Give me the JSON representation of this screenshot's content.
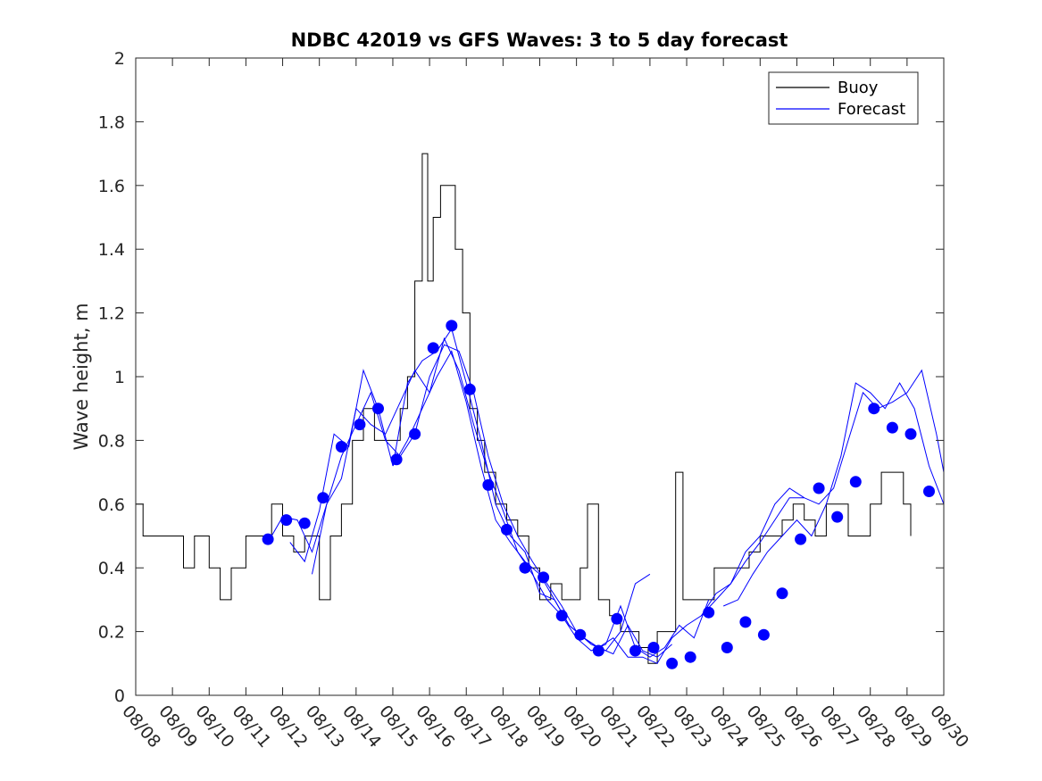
{
  "chart_data": {
    "type": "line",
    "title": "NDBC 42019 vs GFS Waves: 3 to 5 day forecast",
    "xlabel": "",
    "ylabel": "Wave height, m",
    "x_range_days": [
      0,
      22
    ],
    "ylim": [
      0,
      2
    ],
    "y_ticks": [
      0,
      0.2,
      0.4,
      0.6,
      0.8,
      1,
      1.2,
      1.4,
      1.6,
      1.8,
      2
    ],
    "y_tick_labels": [
      "0",
      "0.2",
      "0.4",
      "0.6",
      "0.8",
      "1",
      "1.2",
      "1.4",
      "1.6",
      "1.8",
      "2"
    ],
    "x_tick_labels": [
      "08/08",
      "08/09",
      "08/10",
      "08/11",
      "08/12",
      "08/13",
      "08/14",
      "08/15",
      "08/16",
      "08/17",
      "08/18",
      "08/19",
      "08/20",
      "08/21",
      "08/22",
      "08/23",
      "08/24",
      "08/25",
      "08/26",
      "08/27",
      "08/28",
      "08/29",
      "08/30"
    ],
    "grid": false,
    "legend": {
      "position": "top-right",
      "entries": [
        {
          "label": "Buoy",
          "color": "#000000"
        },
        {
          "label": "Forecast",
          "color": "#0000ff"
        }
      ]
    },
    "buoy": {
      "name": "Buoy",
      "color": "#000000",
      "x": [
        0.0,
        0.2,
        0.5,
        1.0,
        1.3,
        1.6,
        2.0,
        2.3,
        2.6,
        3.0,
        3.3,
        3.7,
        4.0,
        4.3,
        4.6,
        5.0,
        5.3,
        5.6,
        5.9,
        6.2,
        6.5,
        6.8,
        7.0,
        7.2,
        7.4,
        7.6,
        7.8,
        7.95,
        8.1,
        8.3,
        8.5,
        8.7,
        8.9,
        9.1,
        9.3,
        9.5,
        9.8,
        10.1,
        10.4,
        10.7,
        11.0,
        11.3,
        11.6,
        11.9,
        12.1,
        12.3,
        12.6,
        12.9,
        13.2,
        13.5,
        13.7,
        13.95,
        14.2,
        14.5,
        14.7,
        14.9,
        15.1,
        15.3,
        15.5,
        15.75,
        15.9,
        16.1,
        16.4,
        16.7,
        17.0,
        17.3,
        17.6,
        17.9,
        18.2,
        18.5,
        18.8,
        19.1,
        19.4,
        19.7,
        20.0,
        20.3,
        20.6,
        20.9,
        21.1
      ],
      "y": [
        0.6,
        0.5,
        0.5,
        0.5,
        0.4,
        0.5,
        0.4,
        0.3,
        0.4,
        0.5,
        0.5,
        0.6,
        0.5,
        0.45,
        0.5,
        0.3,
        0.5,
        0.6,
        0.8,
        0.9,
        0.8,
        0.8,
        0.8,
        0.9,
        1.0,
        1.3,
        1.7,
        1.3,
        1.5,
        1.6,
        1.6,
        1.4,
        1.2,
        0.9,
        0.8,
        0.7,
        0.6,
        0.55,
        0.5,
        0.4,
        0.3,
        0.35,
        0.3,
        0.3,
        0.4,
        0.6,
        0.3,
        0.25,
        0.2,
        0.2,
        0.15,
        0.1,
        0.2,
        0.2,
        0.7,
        0.3,
        0.3,
        0.3,
        0.3,
        0.4,
        0.4,
        0.4,
        0.4,
        0.45,
        0.5,
        0.5,
        0.55,
        0.6,
        0.55,
        0.5,
        0.6,
        0.6,
        0.5,
        0.5,
        0.6,
        0.7,
        0.7,
        0.6,
        0.5
      ]
    },
    "forecast_series": [
      {
        "name": "Forecast",
        "x": [
          3.6,
          4.0,
          4.4,
          4.8,
          5.2,
          5.6,
          6.0,
          6.4,
          6.8,
          7.2,
          7.6,
          8.0,
          8.4,
          8.8,
          9.2,
          9.6,
          10.0,
          10.4,
          10.8,
          11.2,
          11.6,
          12.0,
          12.4,
          12.8,
          13.2,
          13.6,
          14.0
        ],
        "y": [
          0.48,
          0.56,
          0.55,
          0.45,
          0.6,
          0.75,
          0.85,
          0.95,
          0.8,
          0.75,
          0.82,
          1.0,
          1.1,
          1.08,
          0.95,
          0.75,
          0.6,
          0.5,
          0.42,
          0.35,
          0.28,
          0.2,
          0.16,
          0.14,
          0.2,
          0.35,
          0.38
        ]
      },
      {
        "name": "Forecast",
        "x": [
          4.2,
          4.6,
          5.0,
          5.4,
          5.8,
          6.2,
          6.6,
          7.0,
          7.4,
          7.8,
          8.2,
          8.6,
          9.0,
          9.4,
          9.8,
          10.2,
          10.6,
          11.0,
          11.4,
          11.8,
          12.2,
          12.6,
          13.0,
          13.4,
          13.8,
          14.2,
          14.6
        ],
        "y": [
          0.48,
          0.42,
          0.58,
          0.82,
          0.78,
          1.02,
          0.9,
          0.72,
          0.98,
          1.05,
          1.08,
          1.15,
          0.98,
          0.8,
          0.6,
          0.5,
          0.45,
          0.32,
          0.3,
          0.22,
          0.18,
          0.15,
          0.13,
          0.22,
          0.14,
          0.12,
          0.16
        ]
      },
      {
        "name": "Forecast",
        "x": [
          4.8,
          5.2,
          5.6,
          6.0,
          6.4,
          6.8,
          7.2,
          7.6,
          8.0,
          8.4,
          8.8,
          9.2,
          9.6,
          10.0,
          10.4,
          10.8,
          11.2,
          11.6,
          12.0,
          12.4,
          12.8,
          13.2,
          13.6,
          14.0,
          14.4,
          14.8,
          15.2,
          15.6
        ],
        "y": [
          0.38,
          0.6,
          0.68,
          0.9,
          0.85,
          0.82,
          0.92,
          1.02,
          0.95,
          1.12,
          1.02,
          0.85,
          0.7,
          0.58,
          0.45,
          0.38,
          0.3,
          0.25,
          0.18,
          0.14,
          0.16,
          0.28,
          0.15,
          0.12,
          0.15,
          0.22,
          0.18,
          0.3
        ]
      },
      {
        "name": "Forecast",
        "x": [
          7.0,
          7.4,
          7.8,
          8.2,
          8.6,
          9.0,
          9.4,
          9.8,
          10.2,
          10.6,
          11.0,
          11.4,
          11.8,
          12.2,
          12.6,
          13.0,
          13.4,
          13.8,
          14.2,
          14.6,
          15.0,
          15.4,
          15.8,
          16.2,
          16.6,
          17.0,
          17.4,
          17.8,
          18.2
        ],
        "y": [
          0.72,
          0.8,
          0.9,
          1.0,
          1.08,
          0.92,
          0.72,
          0.55,
          0.48,
          0.42,
          0.38,
          0.3,
          0.22,
          0.18,
          0.15,
          0.18,
          0.12,
          0.12,
          0.1,
          0.18,
          0.22,
          0.25,
          0.32,
          0.35,
          0.45,
          0.5,
          0.6,
          0.65,
          0.62
        ]
      },
      {
        "name": "Forecast",
        "x": [
          15.4,
          15.8,
          16.2,
          16.6,
          17.0,
          17.4,
          17.8,
          18.2,
          18.6,
          19.0,
          19.4,
          19.8,
          20.2,
          20.6,
          21.0,
          21.4,
          21.8,
          22.0
        ],
        "y": [
          0.25,
          0.3,
          0.35,
          0.42,
          0.48,
          0.55,
          0.62,
          0.62,
          0.6,
          0.65,
          0.8,
          0.95,
          0.9,
          0.92,
          0.95,
          1.02,
          0.82,
          0.7
        ]
      },
      {
        "name": "Forecast",
        "x": [
          16.0,
          16.4,
          16.8,
          17.2,
          17.6,
          18.0,
          18.4,
          18.8,
          19.2,
          19.6,
          20.0,
          20.4,
          20.8,
          21.2,
          21.6,
          22.0
        ],
        "y": [
          0.28,
          0.3,
          0.38,
          0.45,
          0.5,
          0.55,
          0.5,
          0.6,
          0.75,
          0.98,
          0.95,
          0.9,
          0.98,
          0.9,
          0.72,
          0.6
        ]
      }
    ],
    "forecast_markers": {
      "x": [
        3.6,
        4.1,
        4.6,
        5.1,
        5.6,
        6.1,
        6.6,
        7.1,
        7.6,
        8.1,
        8.6,
        9.1,
        9.6,
        10.1,
        10.6,
        11.1,
        11.6,
        12.1,
        12.6,
        13.1,
        13.6,
        14.1,
        14.6,
        15.1,
        15.6,
        16.1,
        16.6,
        17.1,
        17.6,
        18.1,
        18.6,
        19.1,
        19.6,
        20.1,
        20.6,
        21.1,
        21.6
      ],
      "y": [
        0.49,
        0.55,
        0.54,
        0.62,
        0.78,
        0.85,
        0.9,
        0.74,
        0.82,
        1.09,
        1.16,
        0.96,
        0.66,
        0.52,
        0.4,
        0.37,
        0.25,
        0.19,
        0.14,
        0.24,
        0.14,
        0.15,
        0.1,
        0.12,
        0.26,
        0.15,
        0.23,
        0.19,
        0.32,
        0.49,
        0.65,
        0.56,
        0.67,
        0.9,
        0.84,
        0.82,
        0.64
      ]
    }
  }
}
